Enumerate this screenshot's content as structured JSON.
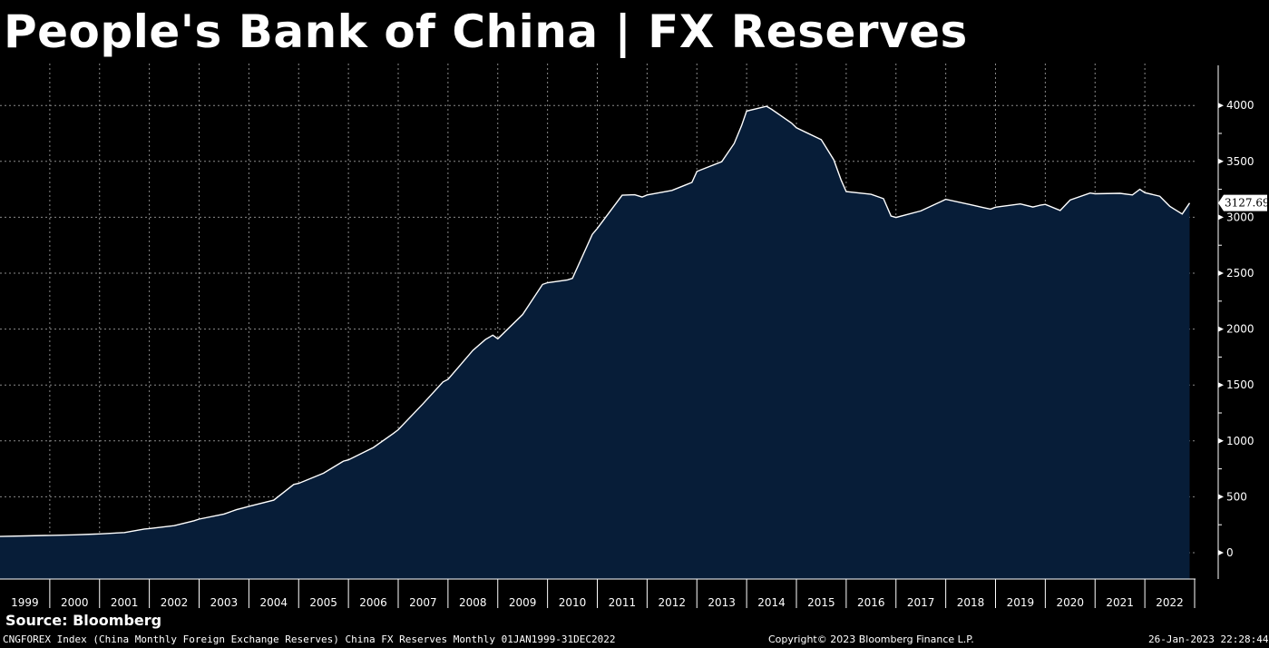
{
  "header": {
    "title": "People's Bank of China | FX Reserves"
  },
  "footer": {
    "source": "Source: Bloomberg",
    "description": "CNGFOREX Index (China Monthly Foreign Exchange Reserves) China FX Reserves  Monthly 01JAN1999-31DEC2022",
    "copyright": "Copyright© 2023 Bloomberg Finance L.P.",
    "timestamp": "26-Jan-2023 22:28:44"
  },
  "colors": {
    "background": "#000000",
    "area_fill": "#071d38",
    "line": "#ffffff",
    "grid": "#8a8a8a"
  },
  "chart_data": {
    "type": "area",
    "title": "People's Bank of China | FX Reserves",
    "xlabel": "",
    "ylabel": "",
    "x_categories": [
      "1999",
      "2000",
      "2001",
      "2002",
      "2003",
      "2004",
      "2005",
      "2006",
      "2007",
      "2008",
      "2009",
      "2010",
      "2011",
      "2012",
      "2013",
      "2014",
      "2015",
      "2016",
      "2017",
      "2018",
      "2019",
      "2020",
      "2021",
      "2022"
    ],
    "ylim": [
      -250,
      4300
    ],
    "y_ticks": [
      0,
      500,
      1000,
      1500,
      2000,
      2500,
      3000,
      3500,
      4000
    ],
    "grid": true,
    "last_value_label": "3127.69",
    "series": [
      {
        "values_by_year": [
          {
            "year": 1999,
            "points": [
              [
                1999.0,
                145
              ],
              [
                1999.5,
                150
              ],
              [
                1999.9,
                154
              ]
            ]
          },
          {
            "year": 2000,
            "points": [
              [
                2000.0,
                155
              ],
              [
                2000.5,
                160
              ],
              [
                2000.9,
                166
              ]
            ]
          },
          {
            "year": 2001,
            "points": [
              [
                2001.0,
                168
              ],
              [
                2001.5,
                180
              ],
              [
                2001.9,
                212
              ]
            ]
          },
          {
            "year": 2002,
            "points": [
              [
                2002.0,
                216
              ],
              [
                2002.5,
                242
              ],
              [
                2002.9,
                286
              ]
            ]
          },
          {
            "year": 2003,
            "points": [
              [
                2003.0,
                300
              ],
              [
                2003.5,
                346
              ],
              [
                2003.75,
                385
              ],
              [
                2003.9,
                403
              ]
            ]
          },
          {
            "year": 2004,
            "points": [
              [
                2004.0,
                415
              ],
              [
                2004.5,
                470
              ],
              [
                2004.9,
                610
              ]
            ]
          },
          {
            "year": 2005,
            "points": [
              [
                2005.0,
                620
              ],
              [
                2005.5,
                711
              ],
              [
                2005.9,
                819
              ]
            ]
          },
          {
            "year": 2006,
            "points": [
              [
                2006.0,
                830
              ],
              [
                2006.5,
                941
              ],
              [
                2006.9,
                1066
              ]
            ]
          },
          {
            "year": 2007,
            "points": [
              [
                2007.0,
                1100
              ],
              [
                2007.5,
                1333
              ],
              [
                2007.9,
                1528
              ]
            ]
          },
          {
            "year": 2008,
            "points": [
              [
                2008.0,
                1550
              ],
              [
                2008.5,
                1809
              ],
              [
                2008.75,
                1906
              ],
              [
                2008.9,
                1946
              ]
            ]
          },
          {
            "year": 2009,
            "points": [
              [
                2009.0,
                1913
              ],
              [
                2009.5,
                2131
              ],
              [
                2009.9,
                2399
              ]
            ]
          },
          {
            "year": 2010,
            "points": [
              [
                2010.0,
                2415
              ],
              [
                2010.4,
                2440
              ],
              [
                2010.5,
                2454
              ],
              [
                2010.9,
                2847
              ]
            ]
          },
          {
            "year": 2011,
            "points": [
              [
                2011.0,
                2900
              ],
              [
                2011.5,
                3197
              ],
              [
                2011.75,
                3201
              ],
              [
                2011.9,
                3181
              ]
            ]
          },
          {
            "year": 2012,
            "points": [
              [
                2012.0,
                3200
              ],
              [
                2012.5,
                3240
              ],
              [
                2012.75,
                3285
              ],
              [
                2012.9,
                3312
              ]
            ]
          },
          {
            "year": 2013,
            "points": [
              [
                2013.0,
                3410
              ],
              [
                2013.5,
                3497
              ],
              [
                2013.75,
                3660
              ],
              [
                2013.9,
                3821
              ]
            ]
          },
          {
            "year": 2014,
            "points": [
              [
                2014.0,
                3950
              ],
              [
                2014.4,
                3993
              ],
              [
                2014.5,
                3966
              ],
              [
                2014.9,
                3843
              ]
            ]
          },
          {
            "year": 2015,
            "points": [
              [
                2015.0,
                3800
              ],
              [
                2015.5,
                3694
              ],
              [
                2015.75,
                3514
              ],
              [
                2015.9,
                3330
              ]
            ]
          },
          {
            "year": 2016,
            "points": [
              [
                2016.0,
                3230
              ],
              [
                2016.5,
                3205
              ],
              [
                2016.75,
                3166
              ],
              [
                2016.9,
                3011
              ]
            ]
          },
          {
            "year": 2017,
            "points": [
              [
                2017.0,
                2998
              ],
              [
                2017.5,
                3057
              ],
              [
                2017.75,
                3109
              ],
              [
                2017.9,
                3140
              ]
            ]
          },
          {
            "year": 2018,
            "points": [
              [
                2018.0,
                3161
              ],
              [
                2018.5,
                3112
              ],
              [
                2018.75,
                3087
              ],
              [
                2018.9,
                3073
              ]
            ]
          },
          {
            "year": 2019,
            "points": [
              [
                2019.0,
                3090
              ],
              [
                2019.5,
                3119
              ],
              [
                2019.75,
                3092
              ],
              [
                2019.9,
                3108
              ]
            ]
          },
          {
            "year": 2020,
            "points": [
              [
                2020.0,
                3115
              ],
              [
                2020.3,
                3061
              ],
              [
                2020.5,
                3154
              ],
              [
                2020.9,
                3217
              ]
            ]
          },
          {
            "year": 2021,
            "points": [
              [
                2021.0,
                3210
              ],
              [
                2021.5,
                3214
              ],
              [
                2021.75,
                3200
              ],
              [
                2021.9,
                3250
              ]
            ]
          },
          {
            "year": 2022,
            "points": [
              [
                2022.0,
                3220
              ],
              [
                2022.3,
                3188
              ],
              [
                2022.5,
                3098
              ],
              [
                2022.75,
                3029
              ],
              [
                2022.9,
                3127.69
              ]
            ]
          }
        ]
      }
    ]
  }
}
